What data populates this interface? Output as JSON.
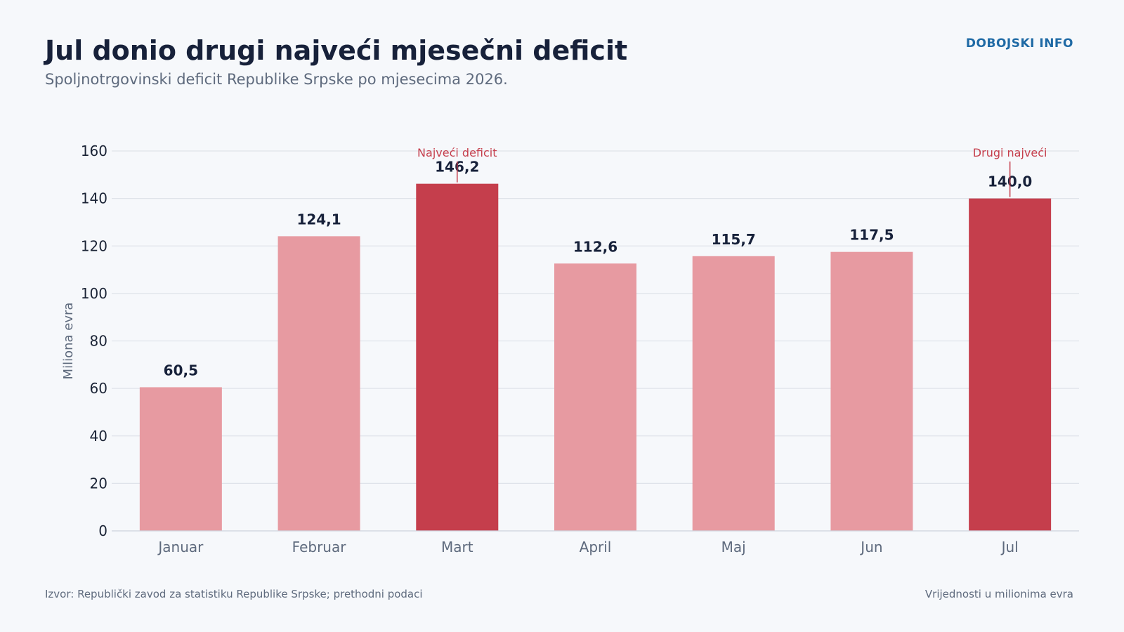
{
  "header": {
    "title": "Jul donio drugi najveći mjesečni deficit",
    "subtitle": "Spoljnotrgovinski deficit Republike Srpske po mjesecima 2026.",
    "brand": "DOBOJSKI INFO"
  },
  "footer": {
    "source": "Izvor: Republički zavod za statistiku Republike Srpske; prethodni podaci",
    "note": "Vrijednosti u milionima evra"
  },
  "colors": {
    "highlight": "#c53e4c",
    "normal": "#e79aa1",
    "grid": "#dfe3ea",
    "annotation": "#c53e4c"
  },
  "chart_data": {
    "type": "bar",
    "categories": [
      "Januar",
      "Februar",
      "Mart",
      "April",
      "Maj",
      "Jun",
      "Jul"
    ],
    "values": [
      60.5,
      124.1,
      146.2,
      112.6,
      115.7,
      117.5,
      140.0
    ],
    "value_labels": [
      "60,5",
      "124,1",
      "146,2",
      "112,6",
      "115,7",
      "117,5",
      "140,0"
    ],
    "highlighted": [
      false,
      false,
      true,
      false,
      false,
      false,
      true
    ],
    "title": "Jul donio drugi najveći mjesečni deficit",
    "subtitle": "Spoljnotrgovinski deficit Republike Srpske po mjesecima 2026.",
    "xlabel": "",
    "ylabel": "Miliona evra",
    "ylim": [
      0,
      160
    ],
    "yticks": [
      0,
      20,
      40,
      60,
      80,
      100,
      120,
      140,
      160
    ],
    "grid": true,
    "annotations": [
      {
        "category": "Mart",
        "text": "Najveći deficit"
      },
      {
        "category": "Jul",
        "text": "Drugi najveći"
      }
    ]
  }
}
